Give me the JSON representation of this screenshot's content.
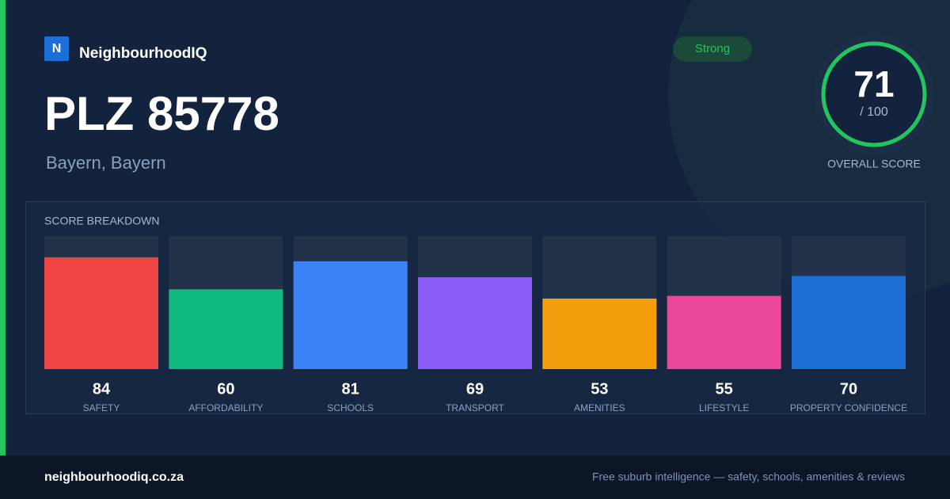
{
  "brand": {
    "logo": "N",
    "name": "NeighbourhoodIQ"
  },
  "title": "PLZ 85778",
  "subtitle": "Bayern, Bayern",
  "badge": "Strong",
  "overall": {
    "score": 71,
    "max_label": "/ 100",
    "label": "OVERALL SCORE"
  },
  "breakdown": {
    "type": "bar",
    "title": "SCORE BREAKDOWN",
    "categories": [
      "SAFETY",
      "AFFORDABILITY",
      "SCHOOLS",
      "TRANSPORT",
      "AMENITIES",
      "LIFESTYLE",
      "PROPERTY CONFIDENCE"
    ],
    "values": [
      84,
      60,
      81,
      69,
      53,
      55,
      70
    ],
    "colors": [
      "#ef4444",
      "#10b981",
      "#3b82f6",
      "#8b5cf6",
      "#f59e0b",
      "#ec4899",
      "#1d6fd8"
    ],
    "ylim": [
      0,
      100
    ]
  },
  "footer": {
    "site": "neighbourhoodiq.co.za",
    "tagline": "Free suburb intelligence — safety, schools, amenities & reviews"
  }
}
